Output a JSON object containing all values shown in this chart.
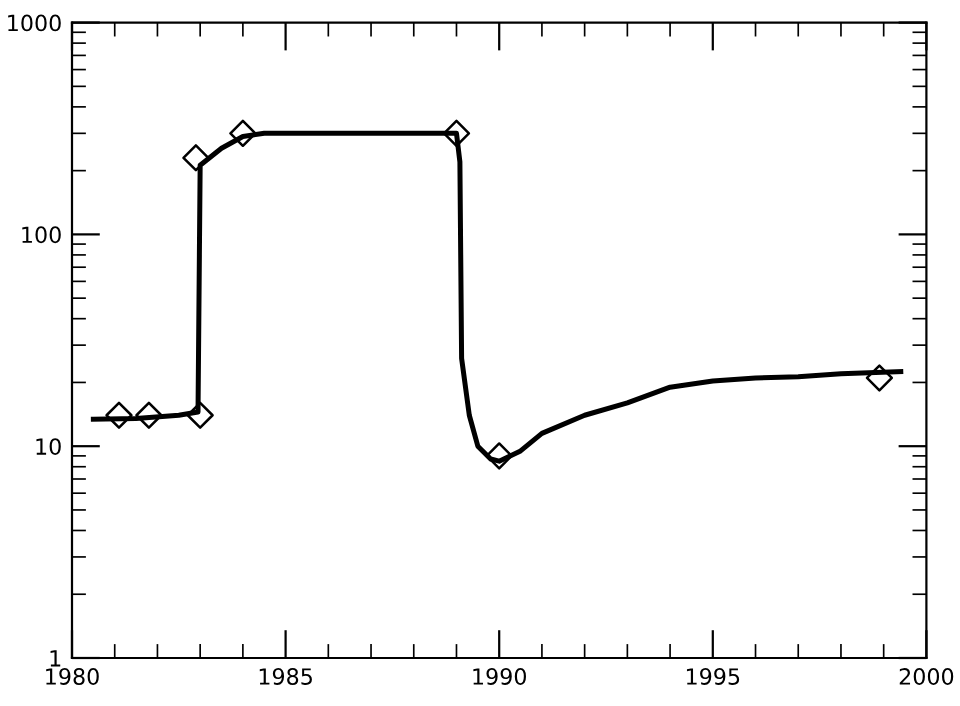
{
  "chart_data": {
    "type": "line",
    "log": "y",
    "xlim": [
      1980,
      2000
    ],
    "ylim": [
      1,
      1000
    ],
    "xticks": [
      1980,
      1985,
      1990,
      1995,
      2000
    ],
    "yticks": [
      1,
      10,
      100,
      1000
    ],
    "grid": false,
    "legend": false,
    "series": [
      {
        "color": "#000000",
        "marker": "none",
        "line_style": "solid",
        "x": [
          1980.5,
          1981.5,
          1982.5,
          1982.95,
          1983.0,
          1983.5,
          1984.0,
          1984.5,
          1986,
          1988,
          1989.0,
          1989.08,
          1989.12,
          1989.3,
          1989.5,
          1989.8,
          1990.0,
          1990.5,
          1991,
          1992,
          1993,
          1994,
          1995,
          1996,
          1997,
          1998,
          1999.4
        ],
        "values": [
          13.4,
          13.5,
          14,
          14.5,
          212,
          255,
          290,
          300,
          300,
          300,
          300,
          220,
          26,
          14,
          10,
          8.7,
          8.5,
          9.5,
          11.5,
          14,
          16,
          19,
          20.3,
          21,
          21.3,
          22,
          22.5
        ]
      },
      {
        "type": "scatter",
        "color": "#000000",
        "marker": "diamond",
        "x": [
          1981.1,
          1981.8,
          1983.0,
          1982.9,
          1984.0,
          1989.0,
          1990.0,
          1998.9
        ],
        "values": [
          14,
          14,
          14,
          230,
          300,
          300,
          9,
          21
        ]
      }
    ]
  }
}
